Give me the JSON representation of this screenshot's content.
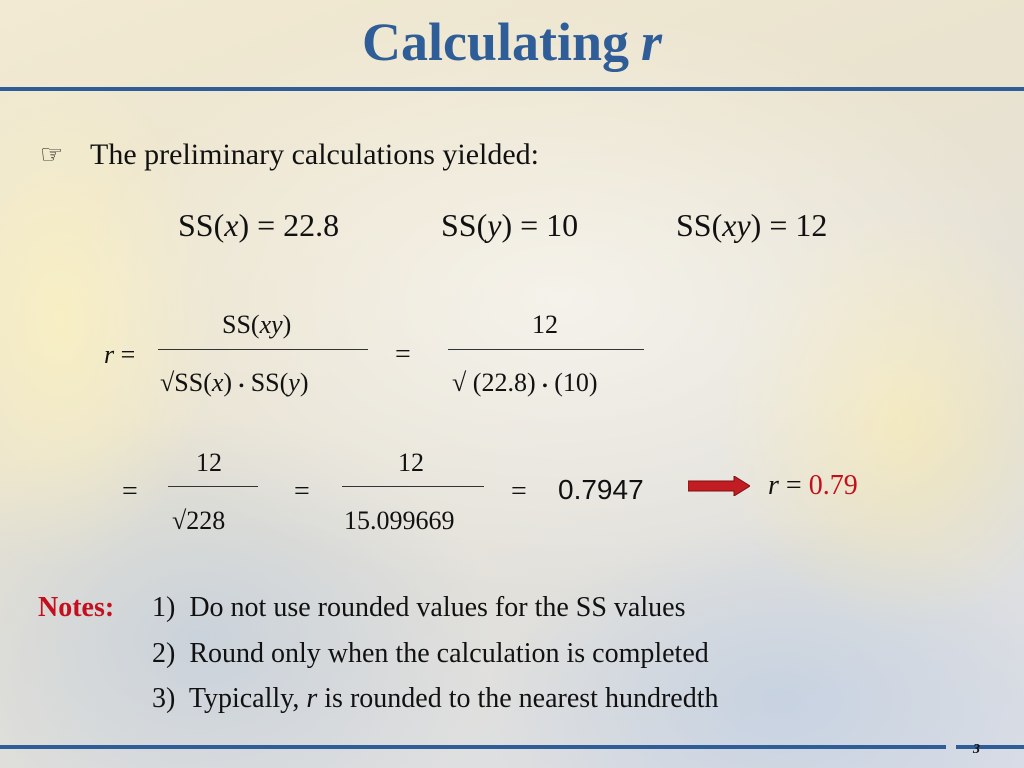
{
  "slide": {
    "title_text": "Calculating",
    "title_var": "r",
    "page_number": "3"
  },
  "intro": {
    "bullet_icon": "pointing-hand-icon",
    "text": "The preliminary calculations yielded:"
  },
  "sums_of_squares": {
    "ssx_pre": "SS(",
    "ssx_var": "x",
    "ssx_post": ") = 22.8",
    "ssy_pre": "SS(",
    "ssy_var": "y",
    "ssy_post": ") = 10",
    "ssxy_pre": "SS(",
    "ssxy_var": "xy",
    "ssxy_post": ") = 12"
  },
  "formula": {
    "r_var": "r",
    "eq": "=",
    "num1_pre": "SS(",
    "num1_var": "xy",
    "num1_post": ")",
    "den1_root": "√",
    "den1_a_pre": "SS(",
    "den1_a_var": "x",
    "den1_a_post": ")",
    "dot": "•",
    "den1_b_pre": "SS(",
    "den1_b_var": "y",
    "den1_b_post": ")",
    "num2": "12",
    "den2_root": "√",
    "den2_a": "(22.8)",
    "den2_b": "(10)"
  },
  "steps": {
    "eq": "=",
    "num3": "12",
    "den3_root": "√",
    "den3": "228",
    "num4": "12",
    "den4": "15.099669",
    "result": "0.7947",
    "final_var": "r",
    "final_eq": "=",
    "final_value": "0.79"
  },
  "notes": {
    "label": "Notes:",
    "items": [
      {
        "num": "1)",
        "text": "Do not use rounded values for the SS values"
      },
      {
        "num": "2)",
        "text": "Round only when the calculation is completed"
      },
      {
        "num": "3)",
        "pre": "Typically,",
        "var": "r",
        "post": "is rounded to the nearest hundredth"
      }
    ]
  },
  "colors": {
    "title": "#2f5d97",
    "accent_red": "#c4101e",
    "arrow_red": "#c21d23"
  }
}
